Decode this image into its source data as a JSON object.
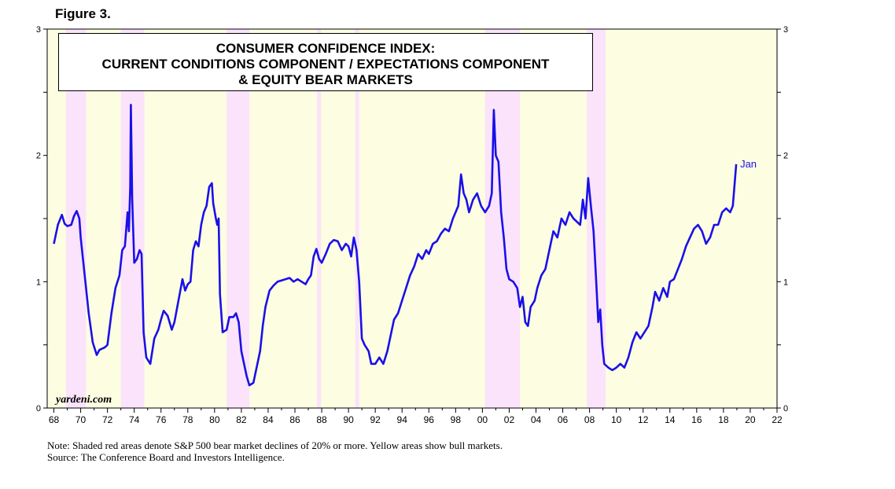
{
  "figure_label": "Figure 3.",
  "watermark": "yardeni.com",
  "notes": [
    "Note: Shaded red areas denote S&P 500 bear market declines of 20% or more. Yellow areas show bull markets.",
    "Source: The Conference Board and Investors Intelligence."
  ],
  "colors": {
    "line": "#1a10e8",
    "bear": "#fbe3fb",
    "bull": "#fdfde2"
  },
  "chart_data": {
    "type": "line",
    "title": [
      "CONSUMER CONFIDENCE INDEX:",
      "CURRENT CONDITIONS COMPONENT / EXPECTATIONS COMPONENT",
      "& EQUITY BEAR MARKETS"
    ],
    "xlim": [
      1967.5,
      2022.0
    ],
    "ylim": [
      0,
      3
    ],
    "x_tick_labels": [
      "68",
      "70",
      "72",
      "74",
      "76",
      "78",
      "80",
      "82",
      "84",
      "86",
      "88",
      "90",
      "92",
      "94",
      "96",
      "98",
      "00",
      "02",
      "04",
      "06",
      "08",
      "10",
      "12",
      "14",
      "16",
      "18",
      "20",
      "22"
    ],
    "y_tick_labels": [
      "0",
      "1",
      "2",
      "3"
    ],
    "grid": false,
    "end_label": "Jan",
    "bear_markets": [
      [
        1968.9,
        1970.4
      ],
      [
        1973.0,
        1974.75
      ],
      [
        1980.9,
        1982.6
      ],
      [
        1987.65,
        1987.95
      ],
      [
        1990.5,
        1990.8
      ],
      [
        2000.2,
        2002.8
      ],
      [
        2007.8,
        2009.2
      ]
    ],
    "series": [
      {
        "name": "",
        "points": [
          [
            1968.0,
            1.3
          ],
          [
            1968.3,
            1.45
          ],
          [
            1968.6,
            1.53
          ],
          [
            1968.8,
            1.46
          ],
          [
            1969.0,
            1.44
          ],
          [
            1969.3,
            1.45
          ],
          [
            1969.5,
            1.52
          ],
          [
            1969.7,
            1.56
          ],
          [
            1969.9,
            1.5
          ],
          [
            1970.0,
            1.35
          ],
          [
            1970.3,
            1.05
          ],
          [
            1970.6,
            0.75
          ],
          [
            1970.9,
            0.52
          ],
          [
            1971.2,
            0.42
          ],
          [
            1971.4,
            0.46
          ],
          [
            1971.8,
            0.48
          ],
          [
            1972.0,
            0.5
          ],
          [
            1972.3,
            0.75
          ],
          [
            1972.6,
            0.95
          ],
          [
            1972.9,
            1.05
          ],
          [
            1973.1,
            1.25
          ],
          [
            1973.3,
            1.28
          ],
          [
            1973.5,
            1.55
          ],
          [
            1973.6,
            1.4
          ],
          [
            1973.7,
            1.75
          ],
          [
            1973.75,
            2.4
          ],
          [
            1973.85,
            1.65
          ],
          [
            1974.0,
            1.15
          ],
          [
            1974.2,
            1.18
          ],
          [
            1974.4,
            1.25
          ],
          [
            1974.55,
            1.22
          ],
          [
            1974.7,
            0.6
          ],
          [
            1974.9,
            0.4
          ],
          [
            1975.2,
            0.35
          ],
          [
            1975.5,
            0.55
          ],
          [
            1975.8,
            0.62
          ],
          [
            1976.0,
            0.7
          ],
          [
            1976.2,
            0.77
          ],
          [
            1976.5,
            0.73
          ],
          [
            1976.8,
            0.62
          ],
          [
            1977.0,
            0.68
          ],
          [
            1977.3,
            0.85
          ],
          [
            1977.6,
            1.02
          ],
          [
            1977.8,
            0.93
          ],
          [
            1978.0,
            0.98
          ],
          [
            1978.2,
            1.0
          ],
          [
            1978.4,
            1.25
          ],
          [
            1978.6,
            1.32
          ],
          [
            1978.8,
            1.28
          ],
          [
            1979.0,
            1.45
          ],
          [
            1979.2,
            1.55
          ],
          [
            1979.4,
            1.6
          ],
          [
            1979.6,
            1.75
          ],
          [
            1979.8,
            1.78
          ],
          [
            1979.9,
            1.62
          ],
          [
            1980.1,
            1.5
          ],
          [
            1980.2,
            1.45
          ],
          [
            1980.3,
            1.5
          ],
          [
            1980.4,
            0.9
          ],
          [
            1980.6,
            0.6
          ],
          [
            1980.9,
            0.62
          ],
          [
            1981.1,
            0.72
          ],
          [
            1981.4,
            0.72
          ],
          [
            1981.6,
            0.75
          ],
          [
            1981.8,
            0.68
          ],
          [
            1982.0,
            0.45
          ],
          [
            1982.2,
            0.35
          ],
          [
            1982.4,
            0.25
          ],
          [
            1982.6,
            0.18
          ],
          [
            1982.9,
            0.2
          ],
          [
            1983.1,
            0.3
          ],
          [
            1983.4,
            0.45
          ],
          [
            1983.6,
            0.65
          ],
          [
            1983.8,
            0.8
          ],
          [
            1984.1,
            0.93
          ],
          [
            1984.4,
            0.97
          ],
          [
            1984.7,
            1.0
          ],
          [
            1985.0,
            1.01
          ],
          [
            1985.3,
            1.02
          ],
          [
            1985.6,
            1.03
          ],
          [
            1985.9,
            1.0
          ],
          [
            1986.2,
            1.02
          ],
          [
            1986.5,
            1.0
          ],
          [
            1986.8,
            0.98
          ],
          [
            1987.0,
            1.02
          ],
          [
            1987.2,
            1.05
          ],
          [
            1987.4,
            1.2
          ],
          [
            1987.6,
            1.26
          ],
          [
            1987.8,
            1.18
          ],
          [
            1988.0,
            1.15
          ],
          [
            1988.3,
            1.22
          ],
          [
            1988.6,
            1.3
          ],
          [
            1988.9,
            1.33
          ],
          [
            1989.2,
            1.32
          ],
          [
            1989.5,
            1.25
          ],
          [
            1989.8,
            1.3
          ],
          [
            1990.0,
            1.28
          ],
          [
            1990.2,
            1.2
          ],
          [
            1990.4,
            1.35
          ],
          [
            1990.6,
            1.25
          ],
          [
            1990.8,
            1.0
          ],
          [
            1991.0,
            0.55
          ],
          [
            1991.2,
            0.5
          ],
          [
            1991.5,
            0.45
          ],
          [
            1991.7,
            0.35
          ],
          [
            1992.0,
            0.35
          ],
          [
            1992.3,
            0.4
          ],
          [
            1992.6,
            0.35
          ],
          [
            1992.9,
            0.45
          ],
          [
            1993.1,
            0.55
          ],
          [
            1993.4,
            0.7
          ],
          [
            1993.7,
            0.75
          ],
          [
            1994.0,
            0.85
          ],
          [
            1994.3,
            0.95
          ],
          [
            1994.6,
            1.05
          ],
          [
            1994.9,
            1.12
          ],
          [
            1995.2,
            1.22
          ],
          [
            1995.5,
            1.18
          ],
          [
            1995.8,
            1.25
          ],
          [
            1996.0,
            1.22
          ],
          [
            1996.3,
            1.3
          ],
          [
            1996.6,
            1.32
          ],
          [
            1996.9,
            1.38
          ],
          [
            1997.2,
            1.42
          ],
          [
            1997.5,
            1.4
          ],
          [
            1997.8,
            1.5
          ],
          [
            1998.0,
            1.55
          ],
          [
            1998.2,
            1.6
          ],
          [
            1998.4,
            1.85
          ],
          [
            1998.6,
            1.7
          ],
          [
            1998.8,
            1.65
          ],
          [
            1999.0,
            1.55
          ],
          [
            1999.3,
            1.65
          ],
          [
            1999.6,
            1.7
          ],
          [
            1999.9,
            1.6
          ],
          [
            2000.2,
            1.55
          ],
          [
            2000.5,
            1.6
          ],
          [
            2000.7,
            1.7
          ],
          [
            2000.85,
            2.36
          ],
          [
            2001.0,
            2.0
          ],
          [
            2001.2,
            1.95
          ],
          [
            2001.4,
            1.55
          ],
          [
            2001.6,
            1.35
          ],
          [
            2001.8,
            1.1
          ],
          [
            2002.0,
            1.02
          ],
          [
            2002.3,
            1.0
          ],
          [
            2002.6,
            0.95
          ],
          [
            2002.8,
            0.8
          ],
          [
            2003.0,
            0.88
          ],
          [
            2003.2,
            0.68
          ],
          [
            2003.4,
            0.65
          ],
          [
            2003.6,
            0.8
          ],
          [
            2003.9,
            0.85
          ],
          [
            2004.1,
            0.95
          ],
          [
            2004.4,
            1.05
          ],
          [
            2004.7,
            1.1
          ],
          [
            2005.0,
            1.25
          ],
          [
            2005.3,
            1.4
          ],
          [
            2005.6,
            1.35
          ],
          [
            2005.9,
            1.5
          ],
          [
            2006.2,
            1.45
          ],
          [
            2006.5,
            1.55
          ],
          [
            2006.8,
            1.5
          ],
          [
            2007.0,
            1.48
          ],
          [
            2007.3,
            1.45
          ],
          [
            2007.5,
            1.65
          ],
          [
            2007.7,
            1.5
          ],
          [
            2007.9,
            1.82
          ],
          [
            2008.1,
            1.6
          ],
          [
            2008.3,
            1.4
          ],
          [
            2008.5,
            1.0
          ],
          [
            2008.65,
            0.68
          ],
          [
            2008.8,
            0.78
          ],
          [
            2008.95,
            0.5
          ],
          [
            2009.1,
            0.35
          ],
          [
            2009.4,
            0.32
          ],
          [
            2009.7,
            0.3
          ],
          [
            2010.0,
            0.32
          ],
          [
            2010.3,
            0.35
          ],
          [
            2010.6,
            0.32
          ],
          [
            2010.9,
            0.4
          ],
          [
            2011.2,
            0.52
          ],
          [
            2011.5,
            0.6
          ],
          [
            2011.8,
            0.55
          ],
          [
            2012.1,
            0.6
          ],
          [
            2012.4,
            0.65
          ],
          [
            2012.7,
            0.8
          ],
          [
            2012.9,
            0.92
          ],
          [
            2013.2,
            0.85
          ],
          [
            2013.5,
            0.95
          ],
          [
            2013.8,
            0.88
          ],
          [
            2014.0,
            1.0
          ],
          [
            2014.3,
            1.02
          ],
          [
            2014.6,
            1.1
          ],
          [
            2014.9,
            1.18
          ],
          [
            2015.2,
            1.28
          ],
          [
            2015.5,
            1.35
          ],
          [
            2015.8,
            1.42
          ],
          [
            2016.1,
            1.45
          ],
          [
            2016.4,
            1.4
          ],
          [
            2016.7,
            1.3
          ],
          [
            2017.0,
            1.35
          ],
          [
            2017.3,
            1.45
          ],
          [
            2017.6,
            1.45
          ],
          [
            2017.9,
            1.55
          ],
          [
            2018.2,
            1.58
          ],
          [
            2018.5,
            1.55
          ],
          [
            2018.7,
            1.6
          ],
          [
            2018.95,
            1.93
          ]
        ]
      }
    ]
  }
}
